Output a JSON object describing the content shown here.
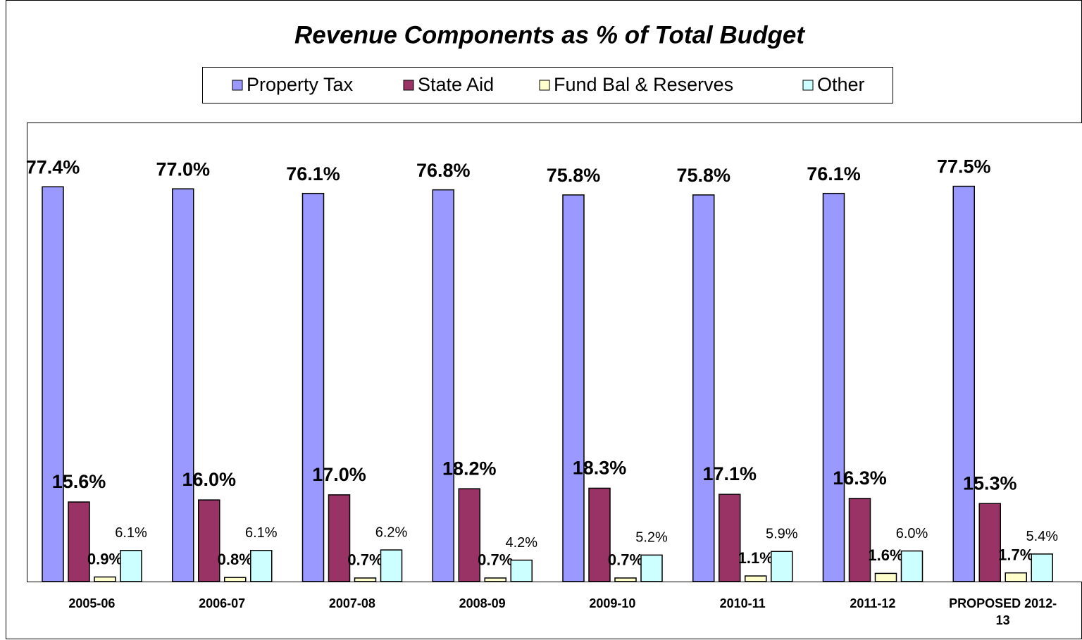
{
  "chart_data": {
    "type": "bar",
    "title": "Revenue Components as % of Total Budget",
    "categories": [
      "2005-06",
      "2006-07",
      "2007-08",
      "2008-09",
      "2009-10",
      "2010-11",
      "2011-12",
      "PROPOSED 2012-13"
    ],
    "ylim": [
      0,
      90
    ],
    "legend": "top",
    "series": [
      {
        "name": "Property Tax",
        "color": "#9999ff",
        "values": [
          77.4,
          77,
          76.1,
          76.8,
          75.8,
          75.8,
          76.1,
          77.5
        ],
        "value_labels": [
          "77.4%",
          "77.0%",
          "76.1%",
          "76.8%",
          "75.8%",
          "75.8%",
          "76.1%",
          "77.5%"
        ]
      },
      {
        "name": "State Aid",
        "color": "#993366",
        "values": [
          15.6,
          16,
          17,
          18.2,
          18.3,
          17.1,
          16.3,
          15.3
        ],
        "value_labels": [
          "15.6%",
          "16.0%",
          "17.0%",
          "18.2%",
          "18.3%",
          "17.1%",
          "16.3%",
          "15.3%"
        ]
      },
      {
        "name": "Fund Bal & Reserves",
        "color": "#ffffcc",
        "values": [
          0.9,
          0.8,
          0.7,
          0.7,
          0.7,
          1.1,
          1.6,
          1.7
        ],
        "value_labels": [
          "0.9%",
          "0.8%",
          "0.7%",
          "0.7%",
          "0.7%",
          "1.1%",
          "1.6%",
          "1.7%"
        ]
      },
      {
        "name": "Other",
        "color": "#ccffff",
        "values": [
          6.1,
          6.1,
          6.2,
          4.2,
          5.2,
          5.9,
          6,
          5.4
        ],
        "value_labels": [
          "6.1%",
          "6.1%",
          "6.2%",
          "4.2%",
          "5.2%",
          "5.9%",
          "6.0%",
          "5.4%"
        ]
      }
    ]
  }
}
